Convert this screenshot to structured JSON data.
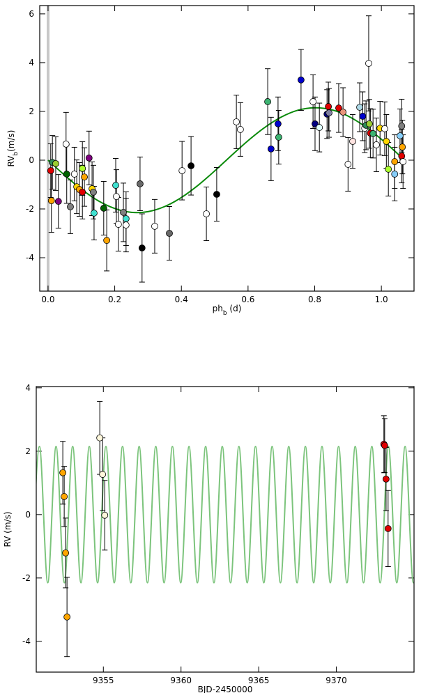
{
  "chart_data": [
    {
      "type": "scatter",
      "xlabel": {
        "main": "ph",
        "sub": "b",
        "rest": " (d)"
      },
      "ylabel": {
        "main": "RV",
        "sub": "b",
        "rest": "(m/s)"
      },
      "xlim": [
        -0.025,
        1.098
      ],
      "ylim": [
        -5.37,
        6.34
      ],
      "xticks": [
        {
          "value": 0,
          "label": "0.0"
        },
        0.2,
        0.4,
        0.6,
        0.8,
        {
          "value": 1,
          "label": "1.0"
        }
      ],
      "yticks": [
        -4,
        -2,
        0,
        2,
        4,
        6
      ],
      "x": [
        0.008,
        0.013,
        0.023,
        0.01,
        0.031,
        0.054,
        0.056,
        0.067,
        0.079,
        0.086,
        0.094,
        0.103,
        0.109,
        0.103,
        0.123,
        0.132,
        0.136,
        0.138,
        0.167,
        0.176,
        0.203,
        0.205,
        0.211,
        0.226,
        0.234,
        0.234,
        0.276,
        0.282,
        0.32,
        0.364,
        0.402,
        0.429,
        0.475,
        0.506,
        0.565,
        0.577,
        0.659,
        0.669,
        0.69,
        0.692,
        0.759,
        0.795,
        0.801,
        0.814,
        0.837,
        0.841,
        0.843,
        0.872,
        0.885,
        0.9,
        0.914,
        0.935,
        0.944,
        0.95,
        0.954,
        0.962,
        0.964,
        0.967,
        0.975,
        0.985,
        0.996,
        1.01,
        1.015,
        1.021,
        1.04,
        1.04,
        1.056,
        1.061,
        1.061,
        1.063,
        1.065
      ],
      "y": [
        -0.43,
        -0.09,
        -0.14,
        -1.66,
        -1.69,
        0.66,
        -0.57,
        -1.91,
        -0.57,
        -1.09,
        -1.2,
        -0.34,
        -0.69,
        -1.31,
        0.09,
        -1.17,
        -1.31,
        -2.17,
        -1.97,
        -3.29,
        -1.03,
        -1.49,
        -2.63,
        -2.14,
        -2.4,
        -2.66,
        -0.97,
        -3.6,
        -2.71,
        -3.0,
        -0.43,
        -0.23,
        -2.2,
        -1.4,
        1.57,
        1.26,
        2.4,
        0.46,
        1.49,
        0.94,
        3.29,
        2.4,
        1.49,
        1.34,
        1.89,
        2.2,
        1.94,
        2.14,
        1.97,
        -0.17,
        0.77,
        2.17,
        1.8,
        1.31,
        1.43,
        3.97,
        1.49,
        1.11,
        1.09,
        0.63,
        1.31,
        1.29,
        0.77,
        -0.37,
        -0.06,
        -0.57,
        1.0,
        1.4,
        0.17,
        0.54,
        -0.06
      ],
      "errors": [
        1.1,
        1.1,
        1.1,
        1.3,
        1.1,
        1.3,
        1.2,
        1.1,
        1.1,
        1.1,
        1.1,
        1.1,
        1.2,
        1.1,
        1.1,
        1.1,
        1.1,
        1.1,
        1.1,
        1.25,
        1.1,
        1.1,
        1.1,
        1.2,
        1.1,
        1.1,
        1.1,
        1.4,
        1.1,
        1.1,
        1.2,
        1.2,
        1.1,
        1.1,
        1.1,
        1.1,
        1.35,
        1.3,
        1.1,
        1.1,
        1.25,
        1.1,
        1.1,
        1.0,
        1.0,
        1.0,
        1.0,
        1.0,
        1.0,
        1.1,
        1.1,
        1.0,
        1.0,
        1.0,
        1.0,
        1.95,
        1.0,
        1.0,
        1.0,
        1.1,
        1.1,
        1.1,
        1.1,
        1.1,
        1.1,
        1.1,
        1.1,
        1.1,
        1.1,
        1.1,
        1.1
      ],
      "colors": [
        "#e00000",
        "#2e8b57",
        "#9acd32",
        "#ffa500",
        "#800080",
        "#ffffff",
        "#006400",
        "#808080",
        "#ffffff",
        "#ffd700",
        "#ffa500",
        "#adff2f",
        "#ffa500",
        "#e00000",
        "#800080",
        "#ffd700",
        "#808080",
        "#40e0d0",
        "#006400",
        "#ffa500",
        "#40e0d0",
        "#ffffff",
        "#ffffff",
        "#808080",
        "#40e0d0",
        "#ffffff",
        "#696969",
        "#000000",
        "#ffffff",
        "#696969",
        "#ffffff",
        "#000000",
        "#ffffff",
        "#000000",
        "#ffffff",
        "#ffffff",
        "#3cb371",
        "#0000cd",
        "#0000cd",
        "#3cb371",
        "#0000cd",
        "#ffffff",
        "#000080",
        "#e0ffff",
        "#000080",
        "#e00000",
        "#8080a0",
        "#e00000",
        "#e9967a",
        "#ffffff",
        "#ffe4e1",
        "#add8e6",
        "#0000cd",
        "#ffffff",
        "#2e8b57",
        "#ffffff",
        "#9acd32",
        "#e00000",
        "#3cb371",
        "#ffffff",
        "#ffd700",
        "#ffffff",
        "#ffd700",
        "#adff2f",
        "#ffa500",
        "#87cefa",
        "#87cefa",
        "#808080",
        "#e00000",
        "#ffa500",
        "#ffffff"
      ],
      "model": {
        "color": "#0a8a0a",
        "x": [
          0,
          0.05,
          0.1,
          0.15,
          0.2,
          0.25,
          0.3,
          0.35,
          0.4,
          0.45,
          0.5,
          0.55,
          0.6,
          0.65,
          0.7,
          0.75,
          0.8,
          0.85,
          0.9,
          0.95,
          1.0,
          1.05,
          1.07
        ],
        "y": [
          0,
          -0.62,
          -1.19,
          -1.66,
          -1.98,
          -2.14,
          -2.11,
          -1.9,
          -1.53,
          -1.03,
          -0.44,
          0.19,
          0.8,
          1.34,
          1.77,
          2.05,
          2.15,
          2.07,
          1.81,
          1.39,
          0.86,
          0.25,
          0
        ]
      }
    },
    {
      "type": "scatter",
      "xlabel": {
        "main": "BJD-2450000"
      },
      "ylabel": {
        "main": "RV (m/s)"
      },
      "xlim": [
        9350.68,
        9375.0
      ],
      "ylim": [
        -4.97,
        4.04
      ],
      "xticks": [
        9355,
        9360,
        9365,
        9370
      ],
      "yticks": [
        -4,
        -2,
        0,
        2,
        4
      ],
      "x": [
        9352.39,
        9352.48,
        9352.57,
        9352.66,
        9354.77,
        9354.95,
        9355.09,
        9373.06,
        9373.11,
        9373.2,
        9373.33
      ],
      "y": [
        1.32,
        0.57,
        -1.21,
        -3.23,
        2.42,
        1.27,
        -0.02,
        2.22,
        2.18,
        1.12,
        -0.44
      ],
      "errors": [
        0.99,
        0.95,
        1.1,
        1.25,
        1.15,
        1.15,
        1.1,
        0.9,
        0.85,
        1.0,
        1.2
      ],
      "colors": [
        "#ffa500",
        "#ffa500",
        "#ffa500",
        "#ffa500",
        "#fff8dc",
        "#fff8dc",
        "#fff8dc",
        "#e00000",
        "#e00000",
        "#e00000",
        "#e00000"
      ],
      "model": {
        "color": "#7cc47c",
        "x": [
          9350.35,
          9350.885,
          9351.42,
          9351.955,
          9352.49,
          9353.025,
          9353.56,
          9354.095,
          9354.63,
          9355.165,
          9355.7,
          9356.235,
          9356.77,
          9357.305,
          9357.84,
          9358.375,
          9358.91,
          9359.445,
          9359.98,
          9360.515,
          9361.05,
          9361.585,
          9362.12,
          9362.655,
          9363.19,
          9363.725,
          9364.26,
          9364.795,
          9365.33,
          9365.865,
          9366.4,
          9366.935,
          9367.47,
          9368.005,
          9368.54,
          9369.075,
          9369.61,
          9370.145,
          9370.68,
          9371.215,
          9371.75,
          9372.285,
          9372.82,
          9373.355,
          9373.89,
          9374.425,
          9374.96,
          9375.495
        ],
        "y": [
          -2.15,
          2.15,
          -2.15,
          2.15,
          -2.15,
          2.15,
          -2.15,
          2.15,
          -2.15,
          2.15,
          -2.15,
          2.15,
          -2.15,
          2.15,
          -2.15,
          2.15,
          -2.15,
          2.15,
          -2.15,
          2.15,
          -2.15,
          2.15,
          -2.15,
          2.15,
          -2.15,
          2.15,
          -2.15,
          2.15,
          -2.15,
          2.15,
          -2.15,
          2.15,
          -2.15,
          2.15,
          -2.15,
          2.15,
          -2.15,
          2.15,
          -2.15,
          2.15,
          -2.15,
          2.15,
          -2.15,
          2.15,
          -2.15,
          2.15,
          -2.15,
          2.15
        ]
      }
    }
  ]
}
